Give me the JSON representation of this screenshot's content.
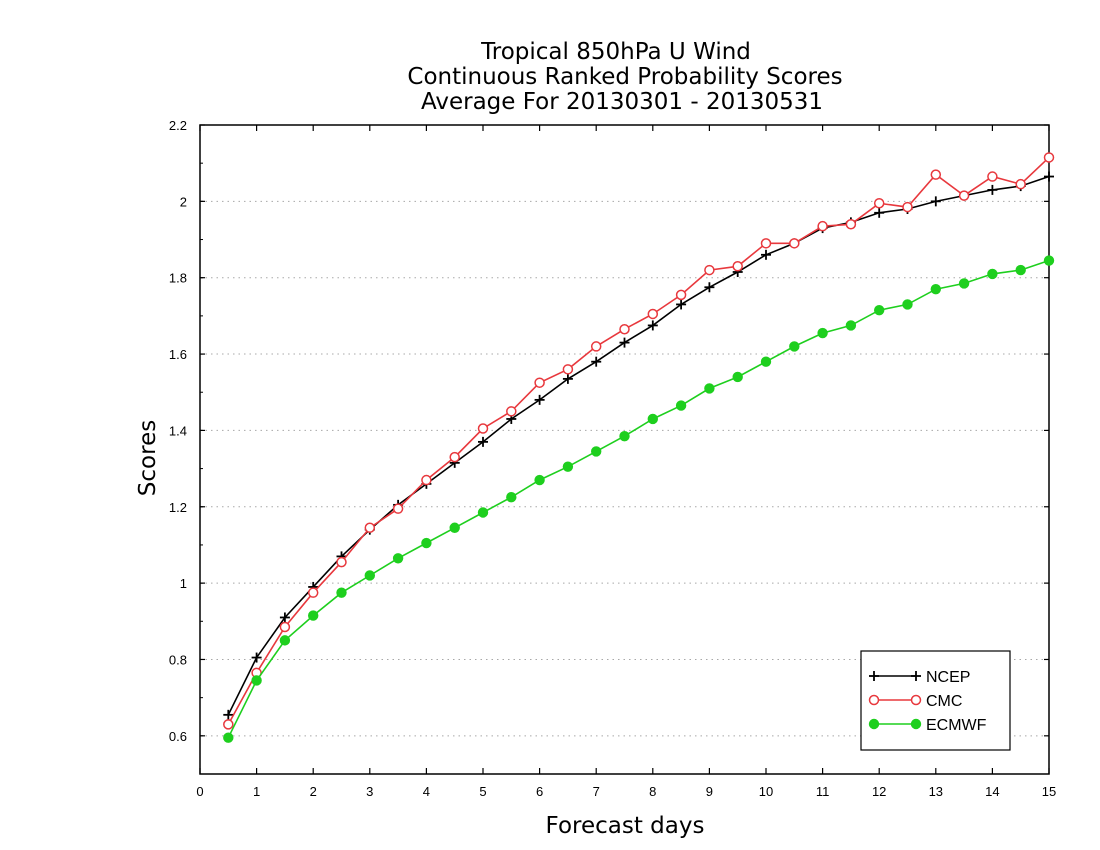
{
  "chart_data": {
    "type": "line",
    "title": [
      "Tropical 850hPa U Wind",
      "Continuous Ranked Probability Scores",
      "Average For 20130301 - 20130531"
    ],
    "xlabel": "Forecast days",
    "ylabel": "Scores",
    "xlim": [
      0,
      15
    ],
    "ylim": [
      0.5,
      2.2
    ],
    "x_ticks": [
      "0",
      "1",
      "2",
      "3",
      "4",
      "5",
      "6",
      "7",
      "8",
      "9",
      "10",
      "11",
      "12",
      "13",
      "14",
      "15"
    ],
    "y_ticks": [
      "0.6",
      "0.8",
      "1",
      "1.2",
      "1.4",
      "1.6",
      "1.8",
      "2",
      "2.2"
    ],
    "grid": "horizontal dotted",
    "legend_position": "bottom-right",
    "x": [
      0.5,
      1,
      1.5,
      2,
      2.5,
      3,
      3.5,
      4,
      4.5,
      5,
      5.5,
      6,
      6.5,
      7,
      7.5,
      8,
      8.5,
      9,
      9.5,
      10,
      10.5,
      11,
      11.5,
      12,
      12.5,
      13,
      13.5,
      14,
      14.5,
      15
    ],
    "series": [
      {
        "name": "NCEP",
        "color": "#000000",
        "marker": "plus",
        "values": [
          0.655,
          0.805,
          0.91,
          0.99,
          1.07,
          1.14,
          1.205,
          1.26,
          1.315,
          1.37,
          1.43,
          1.48,
          1.535,
          1.58,
          1.63,
          1.675,
          1.73,
          1.775,
          1.815,
          1.86,
          1.89,
          1.93,
          1.945,
          1.97,
          1.98,
          2.0,
          2.015,
          2.03,
          2.04,
          2.065
        ]
      },
      {
        "name": "CMC",
        "color": "#e8383d",
        "marker": "open-circle",
        "values": [
          0.63,
          0.765,
          0.885,
          0.975,
          1.055,
          1.145,
          1.195,
          1.27,
          1.33,
          1.405,
          1.45,
          1.525,
          1.56,
          1.62,
          1.665,
          1.705,
          1.755,
          1.82,
          1.83,
          1.89,
          1.89,
          1.935,
          1.94,
          1.995,
          1.985,
          2.07,
          2.015,
          2.065,
          2.045,
          2.115
        ]
      },
      {
        "name": "ECMWF",
        "color": "#1ecf1e",
        "marker": "filled-circle",
        "values": [
          0.595,
          0.745,
          0.85,
          0.915,
          0.975,
          1.02,
          1.065,
          1.105,
          1.145,
          1.185,
          1.225,
          1.27,
          1.305,
          1.345,
          1.385,
          1.43,
          1.465,
          1.51,
          1.54,
          1.58,
          1.62,
          1.655,
          1.675,
          1.715,
          1.73,
          1.77,
          1.785,
          1.81,
          1.82,
          1.845
        ]
      }
    ]
  }
}
